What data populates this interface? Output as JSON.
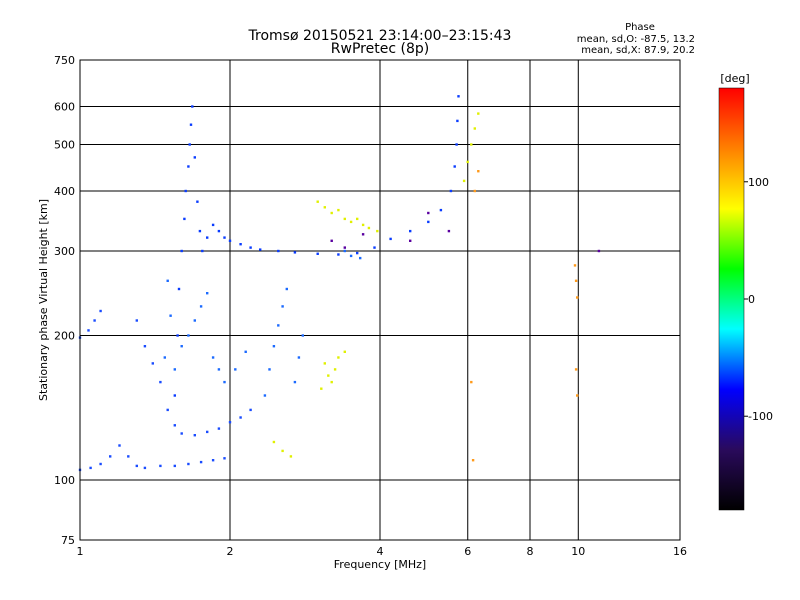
{
  "chart_data": {
    "type": "scatter",
    "title": "Tromsø 20150521 23:14:00–23:15:43",
    "subtitle": "RwPretec (8p)",
    "xlabel": "Frequency [MHz]",
    "ylabel": "Stationary phase Virtual Height [km]",
    "x_scale": "log",
    "y_scale": "log",
    "xlim": [
      1,
      16
    ],
    "ylim": [
      75,
      750
    ],
    "x_ticks": [
      1,
      2,
      4,
      6,
      8,
      10,
      16
    ],
    "y_ticks": [
      75,
      100,
      200,
      300,
      400,
      500,
      600,
      750
    ],
    "grid": true,
    "phase_stats": {
      "heading": "Phase",
      "line_o": "mean, sd,O: -87.5, 13.2",
      "line_x": "mean, sd,X:  87.9, 20.2"
    },
    "colorbar": {
      "label": "[deg]",
      "ticks": [
        "100",
        "0",
        "-100"
      ],
      "tick_values": [
        100,
        0,
        -100
      ],
      "range": [
        -180,
        180
      ],
      "colors": [
        "#000000",
        "#2a0a5c",
        "#0000ff",
        "#00ffff",
        "#00ff00",
        "#ffff00",
        "#ff8000",
        "#ff0000"
      ]
    },
    "series": [
      {
        "color": "#1a4cff",
        "points": [
          [
            1.0,
            105
          ],
          [
            1.05,
            106
          ],
          [
            1.1,
            108
          ],
          [
            1.15,
            112
          ],
          [
            1.2,
            118
          ],
          [
            1.25,
            112
          ],
          [
            1.3,
            107
          ],
          [
            1.35,
            106
          ],
          [
            1.45,
            107
          ],
          [
            1.55,
            107
          ],
          [
            1.65,
            108
          ],
          [
            1.75,
            109
          ],
          [
            1.85,
            110
          ],
          [
            1.95,
            111
          ],
          [
            1.0,
            198
          ],
          [
            1.04,
            205
          ],
          [
            1.07,
            215
          ],
          [
            1.1,
            225
          ],
          [
            1.3,
            215
          ],
          [
            1.35,
            190
          ],
          [
            1.4,
            175
          ],
          [
            1.45,
            160
          ],
          [
            1.5,
            140
          ],
          [
            1.55,
            130
          ],
          [
            1.6,
            125
          ],
          [
            1.7,
            124
          ],
          [
            1.8,
            126
          ],
          [
            1.9,
            128
          ],
          [
            2.0,
            132
          ],
          [
            2.1,
            135
          ],
          [
            2.2,
            140
          ]
        ]
      },
      {
        "color": "#0a3cff",
        "points": [
          [
            1.55,
            150
          ],
          [
            1.57,
            200
          ],
          [
            1.58,
            250
          ],
          [
            1.6,
            300
          ],
          [
            1.62,
            350
          ],
          [
            1.63,
            400
          ],
          [
            1.65,
            450
          ],
          [
            1.66,
            500
          ],
          [
            1.67,
            550
          ],
          [
            1.68,
            600
          ],
          [
            1.7,
            470
          ],
          [
            1.72,
            380
          ],
          [
            1.74,
            330
          ],
          [
            1.76,
            300
          ],
          [
            1.8,
            320
          ],
          [
            1.85,
            340
          ],
          [
            1.9,
            330
          ],
          [
            1.95,
            320
          ],
          [
            2.0,
            315
          ],
          [
            2.1,
            310
          ],
          [
            2.2,
            305
          ],
          [
            2.3,
            302
          ],
          [
            2.5,
            300
          ],
          [
            2.7,
            298
          ],
          [
            3.0,
            296
          ],
          [
            3.3,
            295
          ],
          [
            3.6,
            297
          ],
          [
            3.9,
            305
          ],
          [
            4.2,
            318
          ],
          [
            4.6,
            330
          ],
          [
            5.0,
            345
          ],
          [
            5.3,
            365
          ],
          [
            5.55,
            400
          ],
          [
            5.65,
            450
          ],
          [
            5.7,
            500
          ],
          [
            5.72,
            560
          ],
          [
            5.75,
            630
          ]
        ]
      },
      {
        "color": "#1b6aff",
        "points": [
          [
            1.48,
            180
          ],
          [
            1.52,
            220
          ],
          [
            1.5,
            260
          ],
          [
            1.55,
            170
          ],
          [
            1.6,
            190
          ],
          [
            1.65,
            200
          ],
          [
            1.7,
            215
          ],
          [
            1.75,
            230
          ],
          [
            1.8,
            245
          ],
          [
            1.85,
            180
          ],
          [
            1.9,
            170
          ],
          [
            1.95,
            160
          ],
          [
            2.05,
            170
          ],
          [
            2.15,
            185
          ],
          [
            2.35,
            150
          ],
          [
            2.4,
            170
          ],
          [
            2.45,
            190
          ],
          [
            2.5,
            210
          ],
          [
            2.55,
            230
          ],
          [
            2.6,
            250
          ],
          [
            2.7,
            160
          ],
          [
            2.75,
            180
          ],
          [
            2.8,
            200
          ],
          [
            3.4,
            300
          ],
          [
            3.5,
            293
          ],
          [
            3.65,
            290
          ]
        ]
      },
      {
        "color": "#e0f000",
        "points": [
          [
            3.0,
            380
          ],
          [
            3.1,
            370
          ],
          [
            3.2,
            360
          ],
          [
            3.3,
            365
          ],
          [
            3.4,
            350
          ],
          [
            3.5,
            345
          ],
          [
            3.6,
            350
          ],
          [
            3.7,
            340
          ],
          [
            3.8,
            335
          ],
          [
            3.95,
            330
          ],
          [
            3.1,
            175
          ],
          [
            3.15,
            165
          ],
          [
            3.2,
            160
          ],
          [
            3.25,
            170
          ],
          [
            3.3,
            180
          ],
          [
            3.4,
            185
          ],
          [
            3.05,
            155
          ],
          [
            2.45,
            120
          ],
          [
            2.55,
            115
          ],
          [
            2.65,
            112
          ],
          [
            5.9,
            420
          ],
          [
            6.0,
            460
          ],
          [
            6.1,
            500
          ],
          [
            6.2,
            540
          ],
          [
            6.3,
            580
          ]
        ]
      },
      {
        "color": "#ff9a1a",
        "points": [
          [
            6.2,
            400
          ],
          [
            6.3,
            440
          ],
          [
            9.85,
            280
          ],
          [
            9.9,
            260
          ],
          [
            9.95,
            240
          ],
          [
            9.9,
            170
          ],
          [
            9.95,
            150
          ],
          [
            6.1,
            160
          ],
          [
            6.15,
            110
          ]
        ]
      },
      {
        "color": "#5a00a0",
        "points": [
          [
            3.2,
            315
          ],
          [
            3.4,
            305
          ],
          [
            3.7,
            325
          ],
          [
            4.6,
            315
          ],
          [
            5.0,
            360
          ],
          [
            5.5,
            330
          ],
          [
            11.0,
            300
          ]
        ]
      }
    ]
  }
}
